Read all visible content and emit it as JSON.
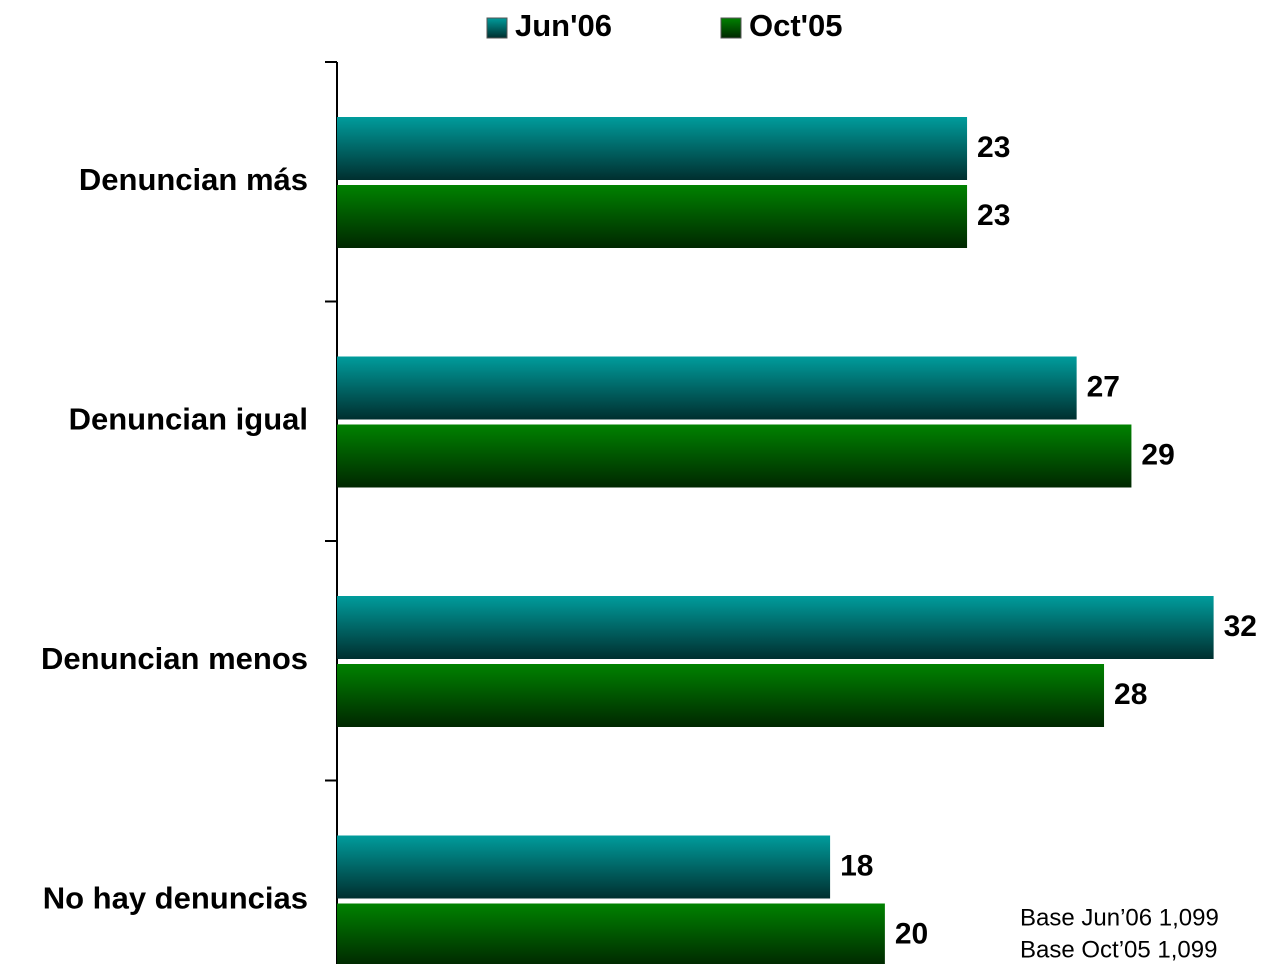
{
  "chart_data": {
    "type": "barh",
    "categories": [
      "Denuncian más",
      "Denuncian igual",
      "Denuncian menos",
      "No hay denuncias"
    ],
    "series": [
      {
        "name": "Jun'06",
        "color": "#009c9c",
        "values": [
          23,
          27,
          32,
          18
        ]
      },
      {
        "name": "Oct'05",
        "color": "#008200",
        "values": [
          23,
          29,
          28,
          20
        ]
      }
    ],
    "xlim": [
      0,
      33
    ],
    "notes": [
      "Base Jun’06 1,099",
      "Base Oct’05 1,099"
    ]
  }
}
